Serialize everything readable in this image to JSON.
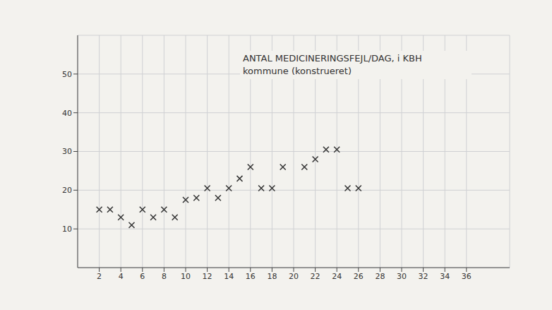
{
  "chart_data": {
    "type": "scatter",
    "title": "ANTAL MEDICINERINGSFEJL/DAG, i KBH kommune (konstrueret)",
    "x": [
      2,
      3,
      4,
      5,
      6,
      7,
      8,
      9,
      10,
      11,
      12,
      13,
      14,
      15,
      16,
      17,
      18,
      19,
      21,
      22,
      23,
      24,
      25,
      26
    ],
    "values": [
      15,
      15,
      13,
      11,
      15,
      13,
      15,
      13,
      17.5,
      18,
      20.5,
      18,
      20.5,
      23,
      26,
      20.5,
      20.5,
      26,
      26,
      28,
      30.5,
      30.5,
      20.5,
      20.5
    ],
    "color": "#333333",
    "marker": "x",
    "xlim": [
      0,
      40
    ],
    "xticks": [
      2,
      4,
      6,
      8,
      10,
      12,
      14,
      16,
      18,
      20,
      22,
      24,
      26,
      28,
      30,
      32,
      34,
      36
    ],
    "ylim": [
      0,
      60
    ],
    "yticks": [
      10,
      20,
      30,
      40,
      50
    ],
    "grid": true
  }
}
